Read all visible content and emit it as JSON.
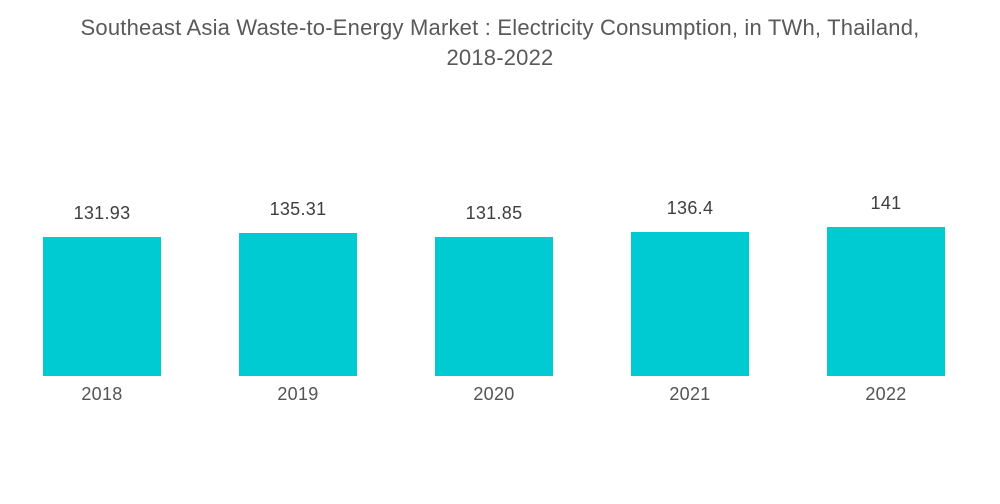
{
  "title": {
    "line1": "Southeast Asia Waste-to-Energy Market : Electricity Consumption, in TWh, Thailand,",
    "line2": "2018-2022"
  },
  "chart_data": {
    "type": "bar",
    "title": "Southeast Asia Waste-to-Energy Market : Electricity Consumption, in TWh, Thailand, 2018-2022",
    "categories": [
      "2018",
      "2019",
      "2020",
      "2021",
      "2022"
    ],
    "values": [
      131.93,
      135.31,
      131.85,
      136.4,
      141
    ],
    "unit": "TWh",
    "baseline": 0,
    "axes_visible": false,
    "gridlines": false,
    "legend": false,
    "data_labels_position": "above-bars",
    "colors": {
      "bar": "#00CBD2",
      "title_text": "#595959",
      "value_label_text": "#3e3e3e",
      "category_label_text": "#545454",
      "background": "#ffffff"
    }
  }
}
